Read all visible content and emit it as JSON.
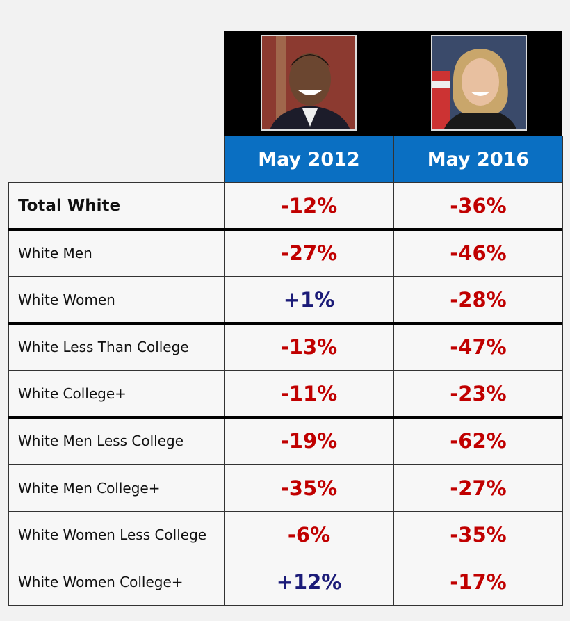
{
  "table": {
    "columns": [
      "May 2012",
      "May 2016"
    ],
    "rows": [
      [
        "Total White",
        "-12%",
        "-36%"
      ],
      [
        "White Men",
        "-27%",
        "-46%"
      ],
      [
        "White Women",
        "+1%",
        "-28%"
      ],
      [
        "White Less Than College",
        "-13%",
        "-47%"
      ],
      [
        "White College+",
        "-11%",
        "-23%"
      ],
      [
        "White Men Less College",
        "-19%",
        "-62%"
      ],
      [
        "White Men College+",
        "-35%",
        "-27%"
      ],
      [
        "White Women Less College",
        "-6%",
        "-35%"
      ],
      [
        "White Women College+",
        "+12%",
        "-17%"
      ]
    ]
  }
}
